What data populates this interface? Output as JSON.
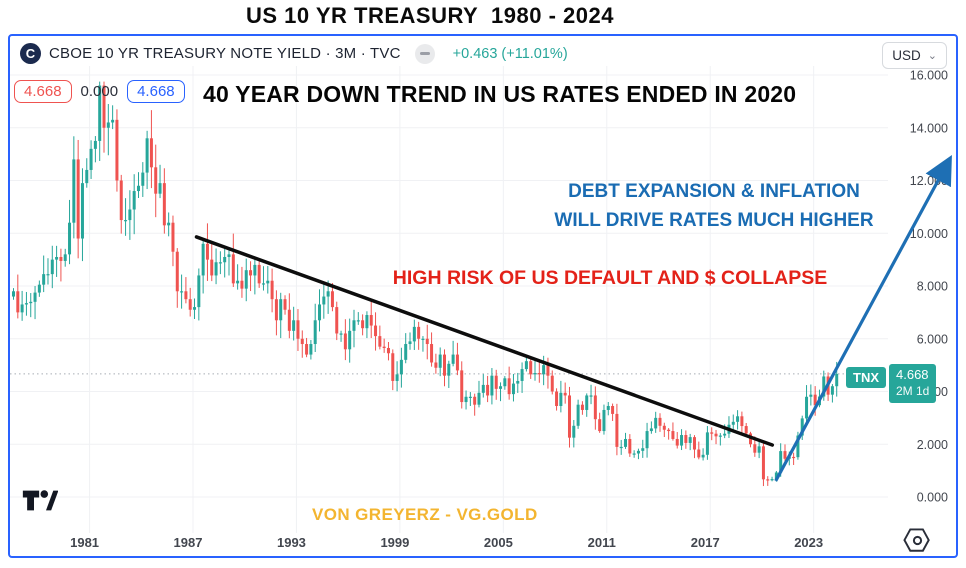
{
  "page": {
    "title": "US 10 YR TREASURY  1980 - 2024"
  },
  "header": {
    "logo_letter": "C",
    "symbol": "CBOE 10 YR TREASURY NOTE YIELD · 3M · TVC",
    "change": "+0.463 (+11.01%)",
    "currency": "USD",
    "currency_chevron": "⌄",
    "icons": {
      "eye_icon": "hide-indicator",
      "hex_icon": "screener-eye"
    }
  },
  "price_badges": {
    "sell": "4.668",
    "spread": "0.000",
    "buy": "4.668"
  },
  "annotations": {
    "main": "40 YEAR DOWN TREND IN US RATES ENDED IN 2020",
    "blue_line1": "DEBT EXPANSION & INFLATION",
    "blue_line2": "WILL DRIVE RATES MUCH HIGHER",
    "red": "HIGH RISK OF US DEFAULT AND $ COLLAPSE",
    "watermark": "VON GREYERZ - VG.GOLD"
  },
  "price_label": {
    "ticker": "TNX",
    "value": "4.668",
    "timeframe": "2M 1d"
  },
  "colors": {
    "up": "#26a69a",
    "down": "#ef5350",
    "accent_border": "#2962ff",
    "change_text": "#26a69a",
    "blue_anno": "#1a6cb3",
    "red_anno": "#e32219",
    "gold": "#f3b530",
    "arrow_blue": "#1e6fb4",
    "trendline_black": "#0d0d0d",
    "grid": "#f0f1f4",
    "axis_text": "#42464e",
    "badge_teal": "#26a69a"
  },
  "chart_data": {
    "type": "candlestick",
    "title": "CBOE 10 YR TREASURY NOTE YIELD",
    "timeframe": "3M",
    "exchange": "TVC",
    "x_start_year": 1976.5,
    "x_step_years": 0.25,
    "first_open": 7.6,
    "closes": [
      7.8,
      7.0,
      7.3,
      7.35,
      7.4,
      7.75,
      8.05,
      8.45,
      8.45,
      9.0,
      9.1,
      8.95,
      9.2,
      10.4,
      12.8,
      9.8,
      11.9,
      12.4,
      13.2,
      13.5,
      15.6,
      14.0,
      14.2,
      14.3,
      12.0,
      10.5,
      10.5,
      10.9,
      11.6,
      11.8,
      12.3,
      13.6,
      12.5,
      11.5,
      11.9,
      10.3,
      10.4,
      9.3,
      7.8,
      7.8,
      7.5,
      7.1,
      7.2,
      8.4,
      9.6,
      9.0,
      8.4,
      8.9,
      8.9,
      9.1,
      9.2,
      8.1,
      8.2,
      7.9,
      8.6,
      8.4,
      8.8,
      8.1,
      8.1,
      8.2,
      7.5,
      6.7,
      7.5,
      7.1,
      6.3,
      6.7,
      6.0,
      5.8,
      5.4,
      5.8,
      6.7,
      7.3,
      7.6,
      7.8,
      7.2,
      6.2,
      6.2,
      5.6,
      6.3,
      6.7,
      6.7,
      6.4,
      6.9,
      6.5,
      6.1,
      5.7,
      5.65,
      5.45,
      4.4,
      4.65,
      5.2,
      5.8,
      5.9,
      6.45,
      6.0,
      6.0,
      5.8,
      5.1,
      4.9,
      5.4,
      4.6,
      5.05,
      5.4,
      4.8,
      3.6,
      3.8,
      3.8,
      3.5,
      3.95,
      4.25,
      3.85,
      4.6,
      4.1,
      4.2,
      4.5,
      3.9,
      4.3,
      4.4,
      4.85,
      5.15,
      4.65,
      4.7,
      4.65,
      5.0,
      4.6,
      4.0,
      3.45,
      3.95,
      3.85,
      2.25,
      2.7,
      3.5,
      3.3,
      3.85,
      3.85,
      2.95,
      2.5,
      3.3,
      3.45,
      3.15,
      1.9,
      1.9,
      2.2,
      1.65,
      1.65,
      1.75,
      1.85,
      2.5,
      2.6,
      3.0,
      2.7,
      2.55,
      2.5,
      2.2,
      1.95,
      2.35,
      2.05,
      2.27,
      1.8,
      1.5,
      1.6,
      2.45,
      2.4,
      2.3,
      2.33,
      2.4,
      2.74,
      2.85,
      3.06,
      2.69,
      2.41,
      2.0,
      1.68,
      1.92,
      0.67,
      0.65,
      0.68,
      0.93,
      1.74,
      1.45,
      1.52,
      1.51,
      2.33,
      2.98,
      3.8,
      3.88,
      3.48,
      3.81,
      4.57,
      3.88,
      4.2,
      4.668
    ],
    "last_value": 4.668,
    "current_price_line": 4.668,
    "ylim": [
      0,
      16
    ],
    "grid": true,
    "y_ticks": [
      {
        "value": 16,
        "label": "16.000"
      },
      {
        "value": 14,
        "label": "14.000"
      },
      {
        "value": 12,
        "label": "12.000"
      },
      {
        "value": 10,
        "label": "10.000"
      },
      {
        "value": 8,
        "label": "8.000"
      },
      {
        "value": 6,
        "label": "6.000"
      },
      {
        "value": 4,
        "label": "4.000"
      },
      {
        "value": 2,
        "label": "2.000"
      },
      {
        "value": 0,
        "label": "0.000"
      }
    ],
    "x_ticks": [
      {
        "year": 1981,
        "label": "1981"
      },
      {
        "year": 1987,
        "label": "1987"
      },
      {
        "year": 1993,
        "label": "1993"
      },
      {
        "year": 1999,
        "label": "1999"
      },
      {
        "year": 2005,
        "label": "2005"
      },
      {
        "year": 2011,
        "label": "2011"
      },
      {
        "year": 2017,
        "label": "2017"
      },
      {
        "year": 2023,
        "label": "2023"
      }
    ],
    "trendline": {
      "from": {
        "year": 1987.2,
        "value": 9.86
      },
      "to": {
        "year": 2020.6,
        "value": 1.97
      }
    },
    "arrow": {
      "from": {
        "year": 2020.8,
        "value": 0.61
      },
      "to": {
        "year": 2030.8,
        "value": 12.7
      }
    }
  }
}
